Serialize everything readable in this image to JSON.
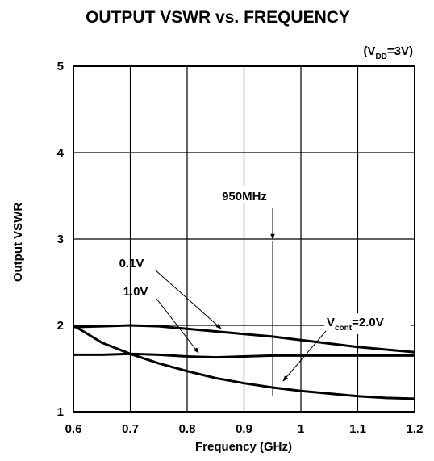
{
  "chart_data": {
    "type": "line",
    "title": "OUTPUT VSWR vs. FREQUENCY",
    "subtitle": {
      "open": "(V",
      "sub": "DD",
      "rest": "=3V)"
    },
    "xlabel": "Frequency (GHz)",
    "ylabel": "Output VSWR",
    "x": [
      0.6,
      0.65,
      0.7,
      0.75,
      0.8,
      0.85,
      0.9,
      0.95,
      1.0,
      1.05,
      1.1,
      1.15,
      1.2
    ],
    "series": [
      {
        "name": "0.1V",
        "color": "#000000",
        "values": [
          1.98,
          1.99,
          2.0,
          1.99,
          1.96,
          1.93,
          1.9,
          1.87,
          1.83,
          1.79,
          1.75,
          1.72,
          1.69
        ]
      },
      {
        "name": "1.0V",
        "color": "#000000",
        "values": [
          1.66,
          1.66,
          1.67,
          1.66,
          1.64,
          1.63,
          1.64,
          1.65,
          1.65,
          1.65,
          1.65,
          1.65,
          1.65
        ]
      },
      {
        "name": "2.0V",
        "color": "#000000",
        "values": [
          2.0,
          1.8,
          1.67,
          1.56,
          1.47,
          1.39,
          1.33,
          1.28,
          1.24,
          1.21,
          1.18,
          1.16,
          1.15
        ]
      }
    ],
    "annotations": {
      "freq": "950MHz",
      "vcont": {
        "text": "V",
        "sub": "cont",
        "rest": "=2.0V"
      }
    },
    "xlim": [
      0.6,
      1.2
    ],
    "xticks": [
      0.6,
      0.7,
      0.8,
      0.9,
      1,
      1.1,
      1.2
    ],
    "ylim": [
      1,
      5
    ],
    "yticks": [
      1,
      2,
      3,
      4,
      5
    ],
    "grid": true
  }
}
